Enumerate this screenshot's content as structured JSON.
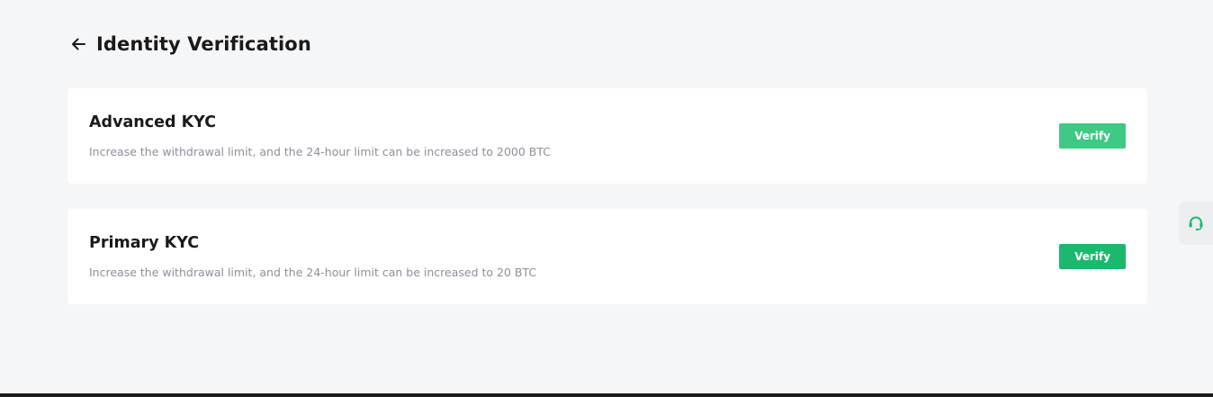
{
  "header": {
    "back_icon": "arrow-left-icon",
    "title": "Identity Verification"
  },
  "cards": [
    {
      "title": "Advanced KYC",
      "description": "Increase the withdrawal limit, and the 24-hour limit can be increased to 2000 BTC",
      "button_label": "Verify"
    },
    {
      "title": "Primary KYC",
      "description": "Increase the withdrawal limit, and the 24-hour limit can be increased to 20 BTC",
      "button_label": "Verify"
    }
  ],
  "support": {
    "icon": "headset-icon"
  },
  "colors": {
    "page_background": "#f5f6f8",
    "card_background": "#ffffff",
    "accent_green": "#1db86f",
    "accent_green_light": "#3ec984",
    "muted_text": "#8c9099"
  }
}
